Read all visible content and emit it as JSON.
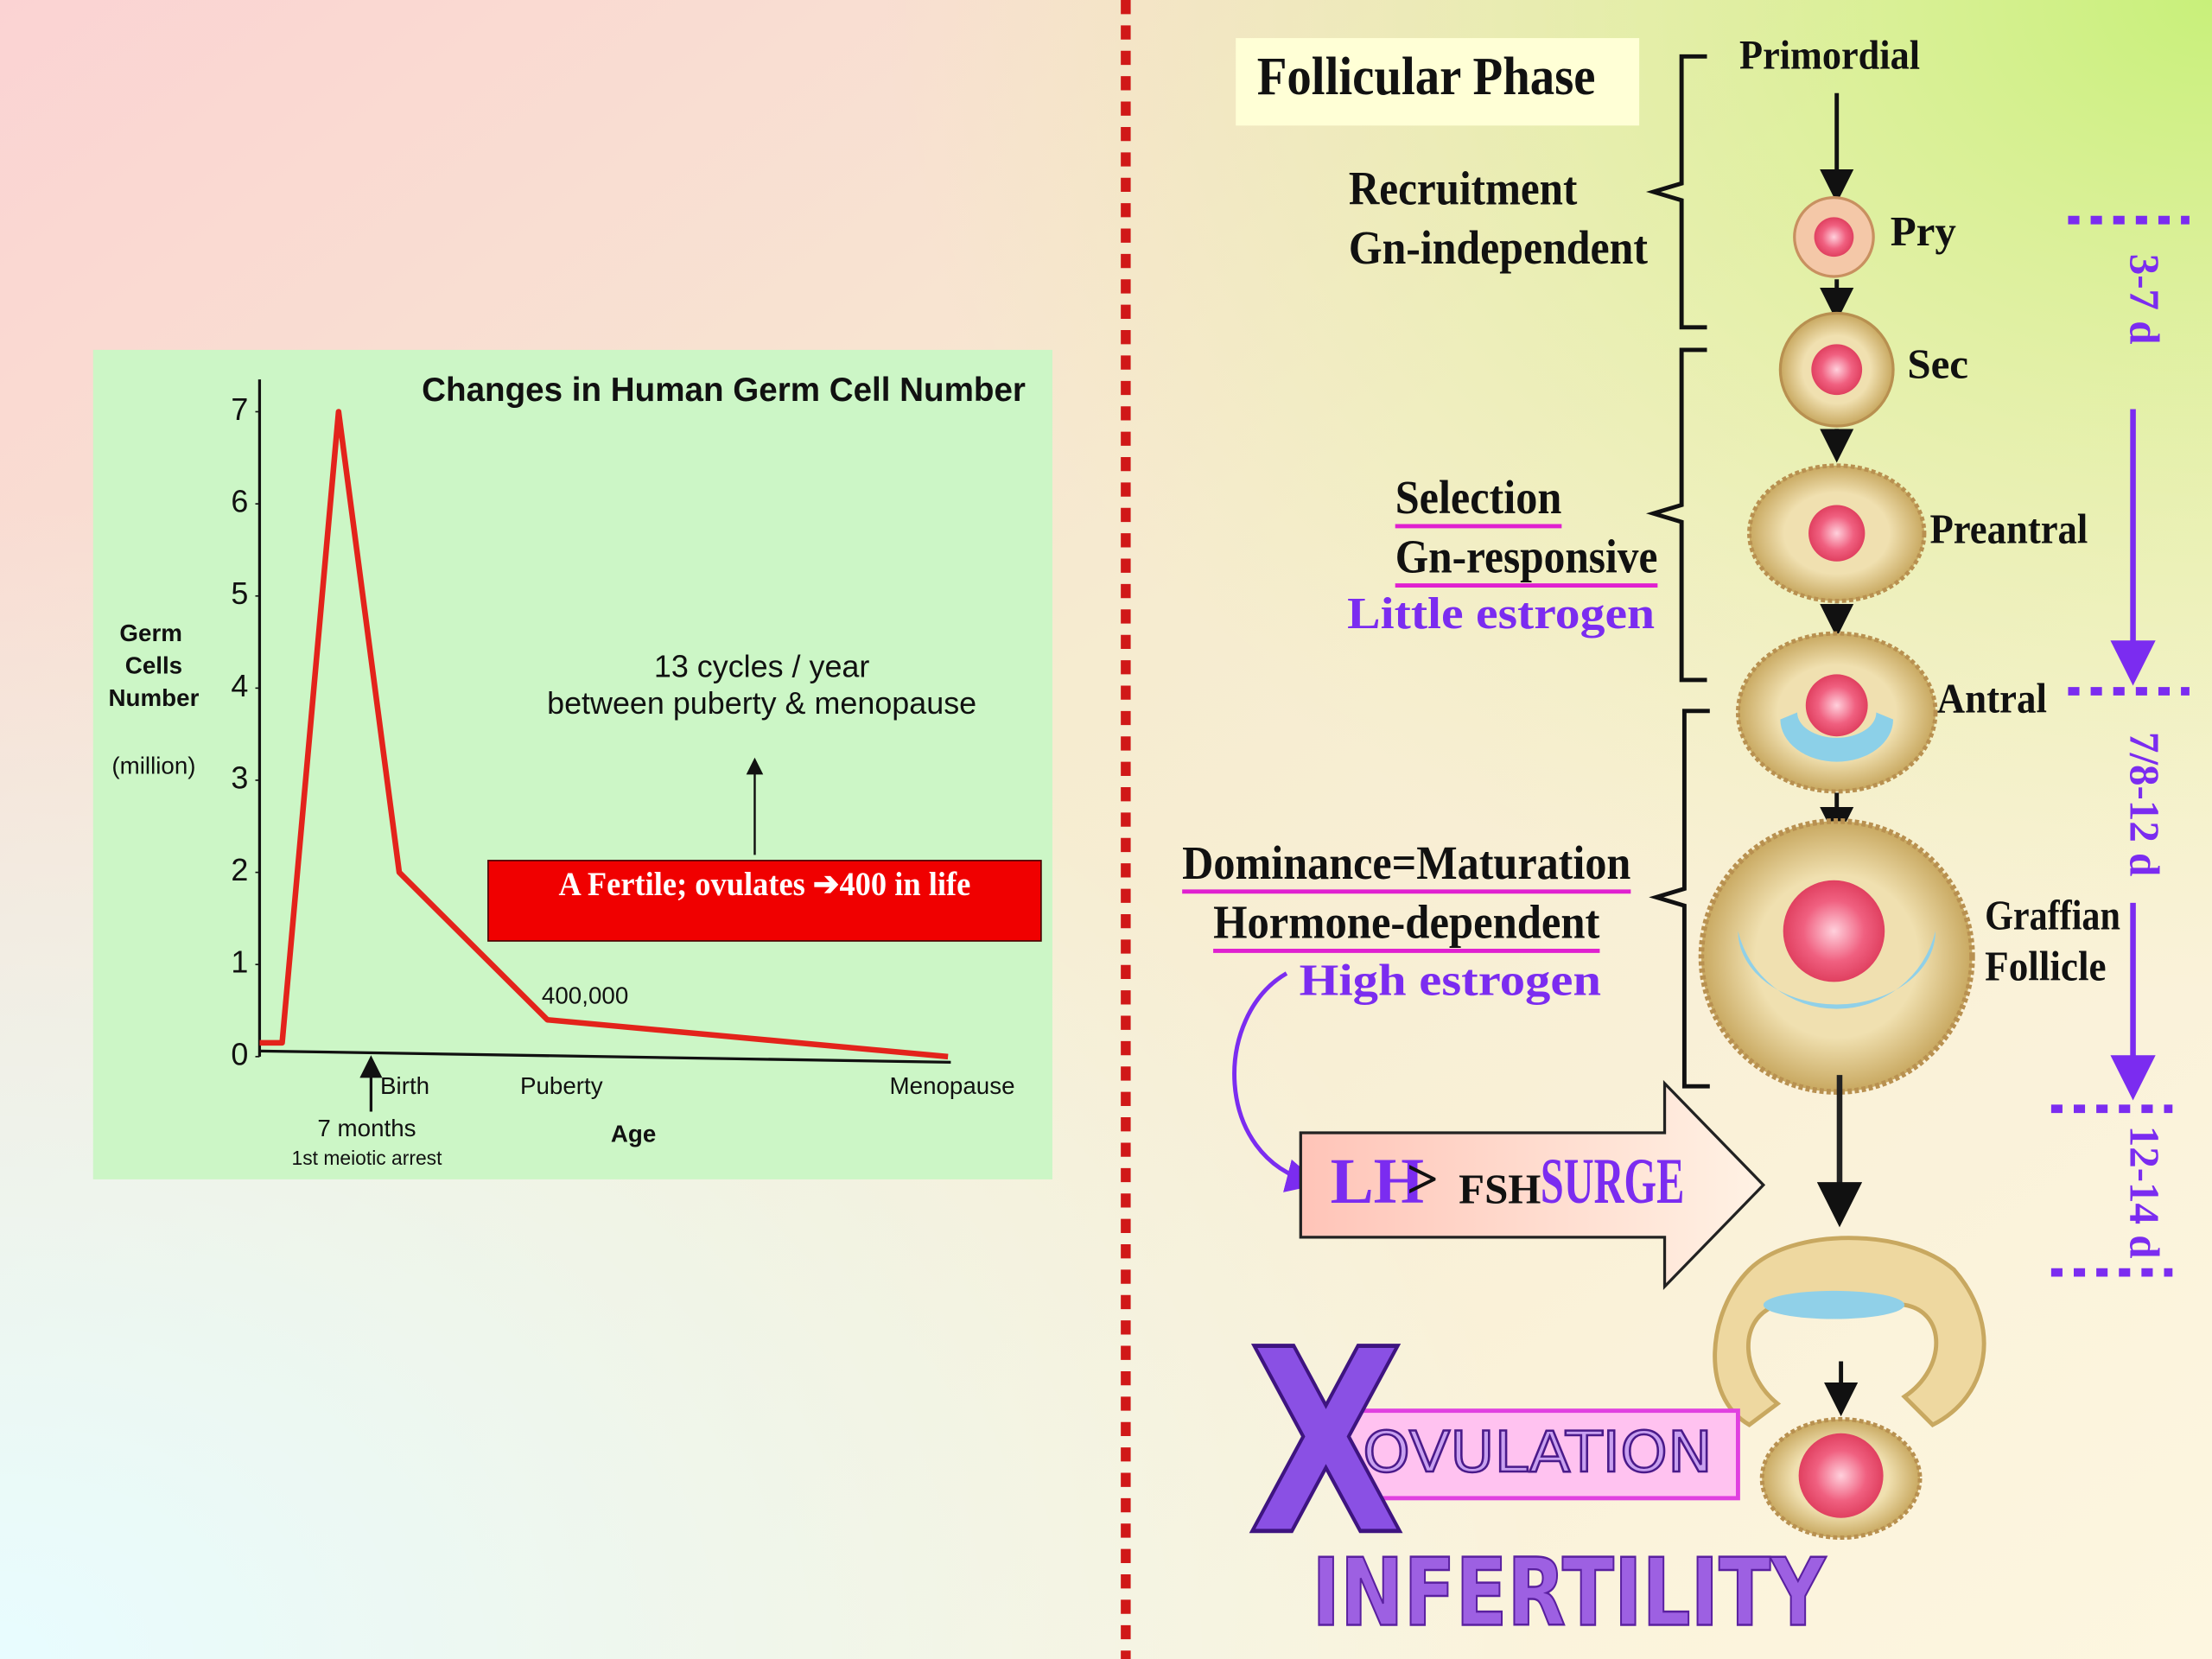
{
  "chart_data": {
    "type": "line",
    "title": "Changes in Human Germ Cell Number",
    "y_label": [
      "Germ",
      "Cells",
      "Number",
      "(million)"
    ],
    "x_label": "Age",
    "categories": [
      null,
      null,
      null,
      "Birth",
      "Puberty",
      "Menopause"
    ],
    "values": [
      0.15,
      0.15,
      7,
      2,
      0.4,
      0
    ],
    "value_labels": [
      null,
      null,
      null,
      null,
      "400,000",
      null
    ],
    "color": "#e3231b",
    "ylim": [
      0,
      7.35
    ],
    "yticks": [
      0,
      1,
      2,
      3,
      4,
      5,
      6,
      7
    ],
    "annotations": {
      "cycles": [
        "13 cycles / year",
        "between puberty & menopause"
      ],
      "fertile": "A Fertile; ovulates ➔400 in life",
      "arrest": [
        "7 months",
        "1st meiotic arrest"
      ]
    }
  },
  "diagram": {
    "title": "Follicular Phase",
    "stages": [
      "Primordial",
      "Pry",
      "Sec",
      "Preantral",
      "Antral",
      "Graffian",
      "Follicle"
    ],
    "recruitment": [
      "Recruitment",
      "Gn-independent"
    ],
    "selection": [
      "Selection",
      "Gn-responsive",
      "Little estrogen"
    ],
    "dominance": [
      "Dominance=Maturation",
      "Hormone-dependent",
      "High estrogen"
    ],
    "surge": [
      "LH",
      ">",
      "FSH",
      "SURGE"
    ],
    "durations": [
      "3-7 d",
      "7/8-12 d",
      "12-14 d"
    ],
    "ovulation": [
      "X",
      "OVULATION"
    ],
    "outcome": "INFERTILITY"
  }
}
